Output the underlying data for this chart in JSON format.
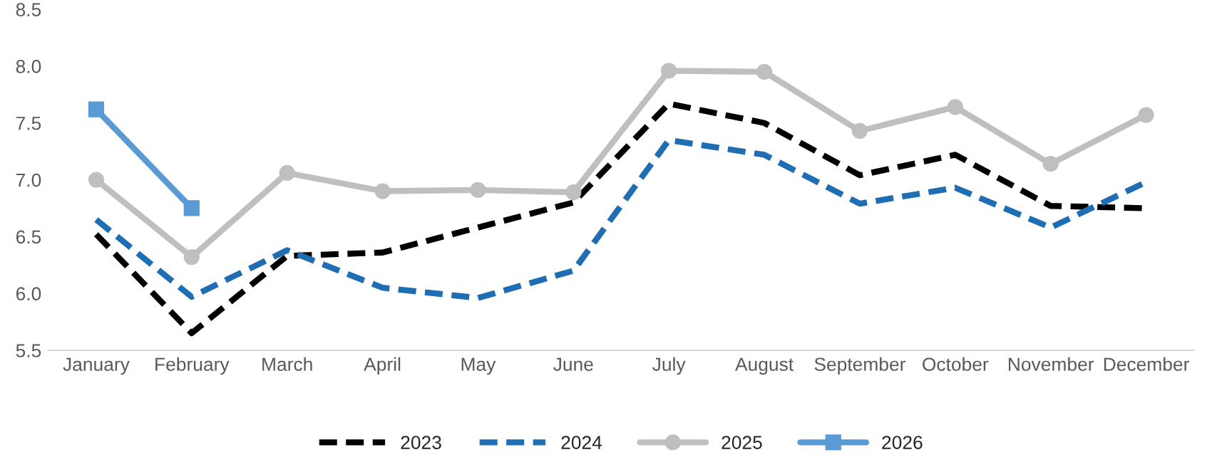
{
  "chart_data": {
    "type": "line",
    "categories": [
      "January",
      "February",
      "March",
      "April",
      "May",
      "June",
      "July",
      "August",
      "September",
      "October",
      "November",
      "December"
    ],
    "series": [
      {
        "name": "2023",
        "color": "#000000",
        "line_style": "dashed",
        "marker": "none",
        "values": [
          6.52,
          5.65,
          6.33,
          6.36,
          6.58,
          6.8,
          7.67,
          7.5,
          7.04,
          7.22,
          6.77,
          6.75
        ]
      },
      {
        "name": "2024",
        "color": "#1f6db3",
        "line_style": "dashed",
        "marker": "none",
        "values": [
          6.65,
          5.97,
          6.38,
          6.05,
          5.96,
          6.2,
          7.35,
          7.22,
          6.79,
          6.93,
          6.58,
          6.98
        ]
      },
      {
        "name": "2025",
        "color": "#bfbfbf",
        "line_style": "solid",
        "marker": "circle",
        "values": [
          7.0,
          6.32,
          7.06,
          6.9,
          6.91,
          6.89,
          7.96,
          7.95,
          7.43,
          7.64,
          7.14,
          7.57
        ]
      },
      {
        "name": "2026",
        "color": "#5b9bd5",
        "line_style": "solid",
        "marker": "square",
        "values": [
          7.62,
          6.75,
          null,
          null,
          null,
          null,
          null,
          null,
          null,
          null,
          null,
          null
        ]
      }
    ],
    "ylim": [
      5.5,
      8.5
    ],
    "yticks": [
      {
        "value": 5.5,
        "label": "5.5"
      },
      {
        "value": 6,
        "label": "6.0"
      },
      {
        "value": 6.5,
        "label": "6.5"
      },
      {
        "value": 7,
        "label": "7.0"
      },
      {
        "value": 7.5,
        "label": "7.5"
      },
      {
        "value": 8,
        "label": "8.0"
      },
      {
        "value": 8.5,
        "label": "8.5"
      }
    ],
    "grid": false,
    "legend": "bottom"
  }
}
